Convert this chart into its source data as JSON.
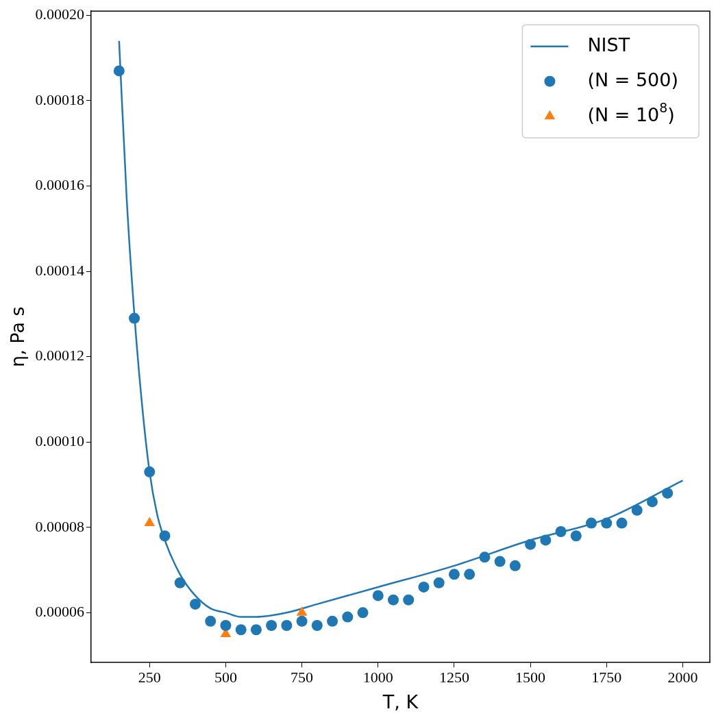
{
  "chart_data": {
    "type": "scatter",
    "xlabel": "T, K",
    "ylabel": "η, Pa s",
    "xlim": [
      58,
      2089
    ],
    "ylim": [
      4.83e-05,
      0.000201
    ],
    "xticks": [
      250,
      500,
      750,
      1000,
      1250,
      1500,
      1750,
      2000
    ],
    "yticks": [
      {
        "value": 6e-05,
        "label": "0.00006"
      },
      {
        "value": 8e-05,
        "label": "0.00008"
      },
      {
        "value": 0.0001,
        "label": "0.00010"
      },
      {
        "value": 0.00012,
        "label": "0.00012"
      },
      {
        "value": 0.00014,
        "label": "0.00014"
      },
      {
        "value": 0.00016,
        "label": "0.00016"
      },
      {
        "value": 0.00018,
        "label": "0.00018"
      },
      {
        "value": 0.0002,
        "label": "0.00020"
      }
    ],
    "legend": "top right",
    "grid": false,
    "series": [
      {
        "name": "NIST",
        "type": "line",
        "marker": "none",
        "color": "#1f77b4",
        "x": [
          150,
          175,
          200,
          225,
          250,
          275,
          300,
          350,
          400,
          450,
          500,
          550,
          600,
          700,
          800,
          1000,
          1250,
          1500,
          1750,
          2000
        ],
        "values": [
          0.000194,
          0.000157,
          0.00013,
          0.000109,
          9.3e-05,
          8.3e-05,
          7.7e-05,
          6.9e-05,
          6.4e-05,
          6.1e-05,
          6e-05,
          5.9e-05,
          5.9e-05,
          6e-05,
          6.2e-05,
          6.6e-05,
          7.1e-05,
          7.7e-05,
          8.2e-05,
          9.1e-05
        ]
      },
      {
        "name": "(N = 500)",
        "type": "scatter",
        "marker": "circle",
        "color": "#1f77b4",
        "x": [
          150,
          200,
          250,
          300,
          350,
          400,
          450,
          500,
          550,
          600,
          650,
          700,
          750,
          800,
          850,
          900,
          950,
          1000,
          1050,
          1100,
          1150,
          1200,
          1250,
          1300,
          1350,
          1400,
          1450,
          1500,
          1550,
          1600,
          1650,
          1700,
          1750,
          1800,
          1850,
          1900,
          1950
        ],
        "values": [
          0.000187,
          0.000129,
          9.3e-05,
          7.8e-05,
          6.7e-05,
          6.2e-05,
          5.8e-05,
          5.7e-05,
          5.6e-05,
          5.6e-05,
          5.7e-05,
          5.7e-05,
          5.8e-05,
          5.7e-05,
          5.8e-05,
          5.9e-05,
          6e-05,
          6.4e-05,
          6.3e-05,
          6.3e-05,
          6.6e-05,
          6.7e-05,
          6.9e-05,
          6.9e-05,
          7.3e-05,
          7.2e-05,
          7.1e-05,
          7.6e-05,
          7.7e-05,
          7.9e-05,
          7.8e-05,
          8.1e-05,
          8.1e-05,
          8.1e-05,
          8.4e-05,
          8.6e-05,
          8.8e-05
        ]
      },
      {
        "name": "(N = 10$^{8}$)",
        "type": "scatter",
        "marker": "triangle",
        "color": "#ff7f0e",
        "x": [
          250,
          500,
          750
        ],
        "values": [
          8.1e-05,
          5.5e-05,
          6e-05
        ]
      }
    ]
  }
}
